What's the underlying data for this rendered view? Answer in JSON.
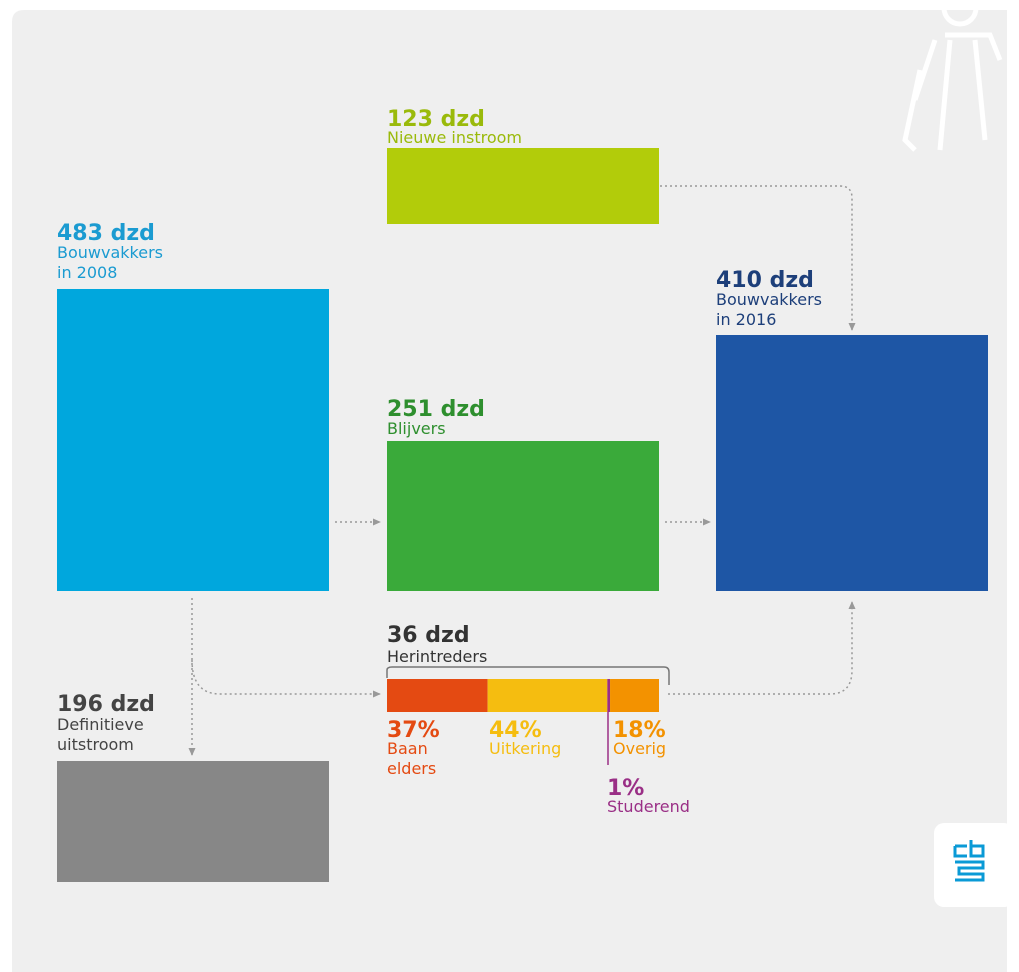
{
  "nodes": [
    {
      "value": "123 dzd",
      "label": [
        "Nieuwe instroom"
      ]
    },
    {
      "value": "483 dzd",
      "label": [
        "Bouwvakkers",
        "in 2008"
      ]
    },
    {
      "value": "410 dzd",
      "label": [
        "Bouwvakkers",
        "in 2016"
      ]
    },
    {
      "value": "251 dzd",
      "label": [
        "Blijvers"
      ]
    },
    {
      "value": "36 dzd",
      "label": [
        "Herintreders"
      ]
    },
    {
      "value": "196 dzd",
      "label": [
        "Definitieve",
        "uitstroom"
      ]
    }
  ],
  "segments": [
    {
      "value": 37,
      "value_label": "37%",
      "label": [
        "Baan",
        "elders"
      ],
      "color": "#e44a12"
    },
    {
      "value": 44,
      "value_label": "44%",
      "label": [
        "Uitkering"
      ],
      "color": "#f5bd10"
    },
    {
      "value": 1,
      "value_label": "1%",
      "label": [
        "Studerend"
      ],
      "color": "#9a2f86"
    },
    {
      "value": 18,
      "value_label": "18%",
      "label": [
        "Overig"
      ],
      "color": "#f39200"
    }
  ]
}
